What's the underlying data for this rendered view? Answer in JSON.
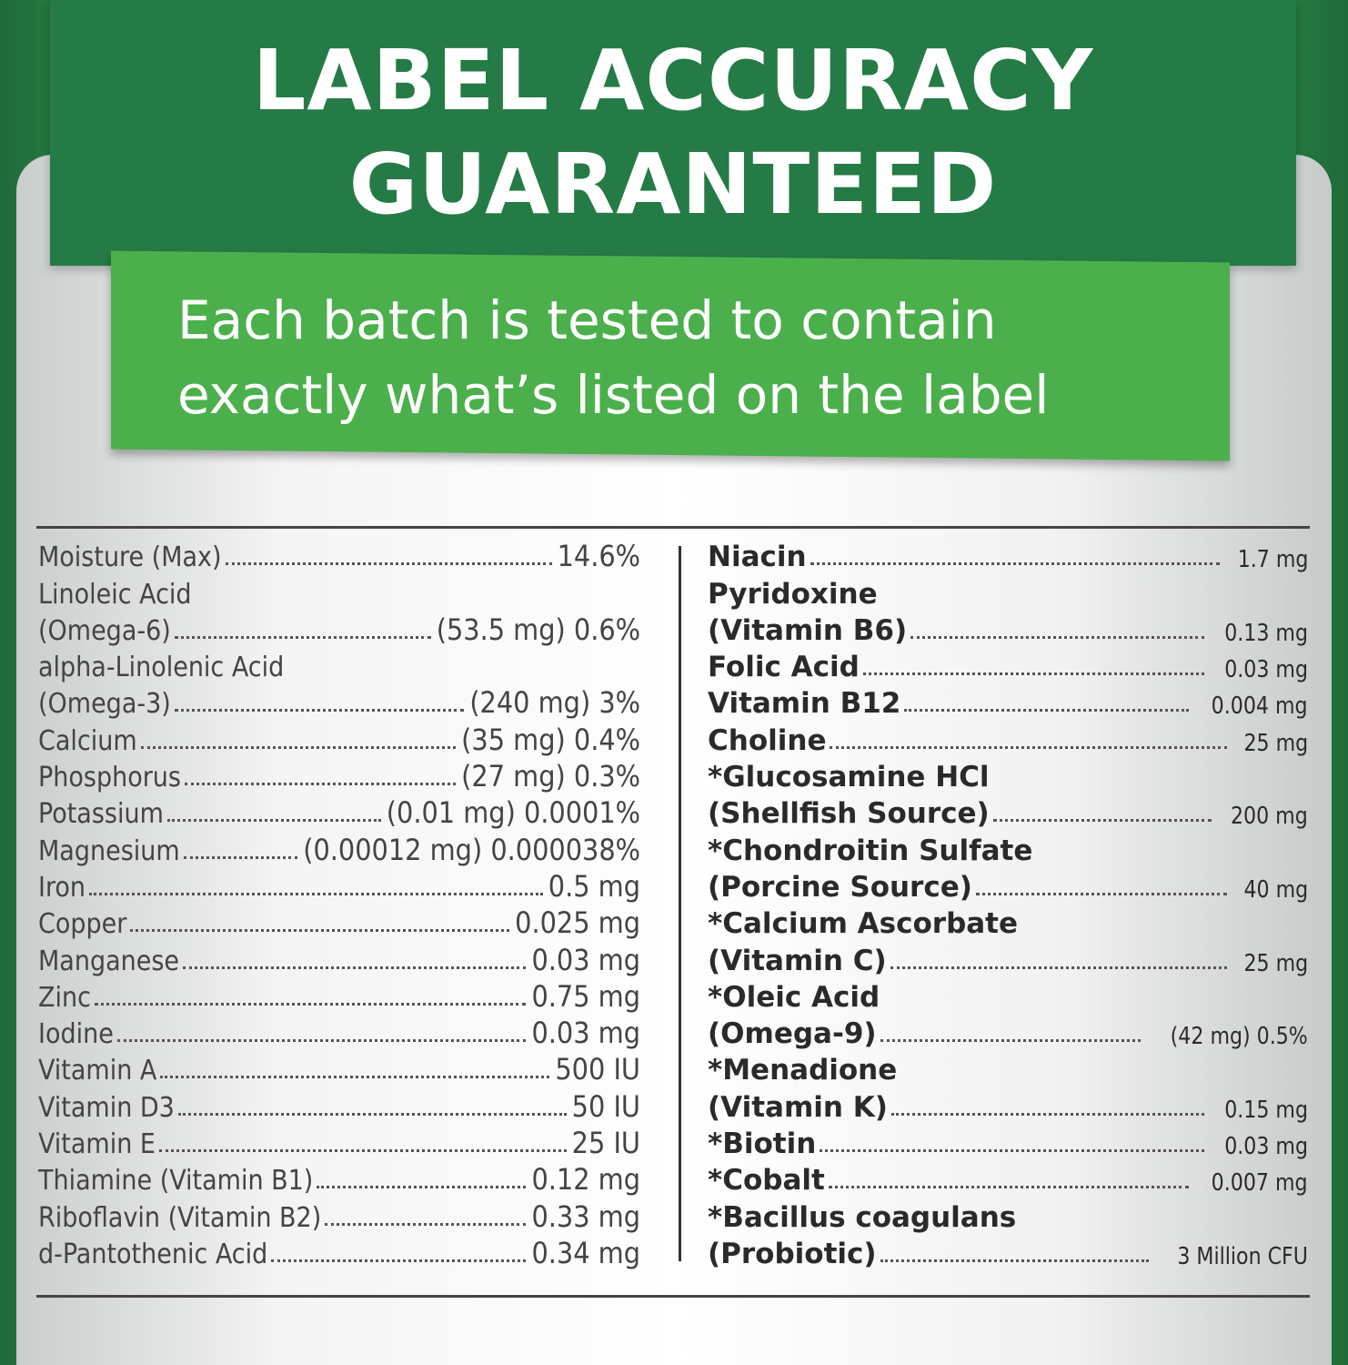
{
  "header": {
    "title_lines": [
      "LABEL ACCURACY",
      "GUARANTEED"
    ],
    "subtitle_lines": [
      "Each batch is tested to contain",
      "exactly what’s listed on the label"
    ]
  },
  "panel": {
    "left": [
      {
        "lines": [
          "Moisture (Max)"
        ],
        "value": "14.6%"
      },
      {
        "lines": [
          "Linoleic Acid",
          "(Omega-6)"
        ],
        "value": "(53.5 mg) 0.6%"
      },
      {
        "lines": [
          "alpha-Linolenic Acid",
          "(Omega-3)"
        ],
        "value": "(240 mg) 3%"
      },
      {
        "lines": [
          "Calcium"
        ],
        "value": "(35 mg) 0.4%"
      },
      {
        "lines": [
          "Phosphorus"
        ],
        "value": "(27 mg) 0.3%"
      },
      {
        "lines": [
          "Potassium"
        ],
        "value": "(0.01 mg) 0.0001%"
      },
      {
        "lines": [
          "Magnesium"
        ],
        "value": "(0.00012 mg) 0.000038%"
      },
      {
        "lines": [
          "Iron"
        ],
        "value": "0.5 mg"
      },
      {
        "lines": [
          "Copper"
        ],
        "value": "0.025 mg"
      },
      {
        "lines": [
          "Manganese"
        ],
        "value": "0.03 mg"
      },
      {
        "lines": [
          "Zinc"
        ],
        "value": "0.75 mg"
      },
      {
        "lines": [
          "Iodine"
        ],
        "value": "0.03 mg"
      },
      {
        "lines": [
          "Vitamin A"
        ],
        "value": "500 IU"
      },
      {
        "lines": [
          "Vitamin D3"
        ],
        "value": "50 IU"
      },
      {
        "lines": [
          "Vitamin E"
        ],
        "value": "25 IU"
      },
      {
        "lines": [
          "Thiamine (Vitamin B1)"
        ],
        "value": "0.12 mg"
      },
      {
        "lines": [
          "Riboflavin (Vitamin B2)"
        ],
        "value": "0.33 mg"
      },
      {
        "lines": [
          "d-Pantothenic Acid"
        ],
        "value": "0.34 mg"
      }
    ],
    "right": [
      {
        "lines": [
          "Niacin"
        ],
        "value": "1.7 mg"
      },
      {
        "lines": [
          "Pyridoxine",
          "(Vitamin B6)"
        ],
        "value": "0.13 mg"
      },
      {
        "lines": [
          "Folic Acid"
        ],
        "value": "0.03 mg"
      },
      {
        "lines": [
          "Vitamin B12"
        ],
        "value": "0.004 mg"
      },
      {
        "lines": [
          "Choline"
        ],
        "value": "25 mg"
      },
      {
        "lines": [
          "*Glucosamine HCl",
          "(Shellfish Source)"
        ],
        "value": "200 mg"
      },
      {
        "lines": [
          "*Chondroitin Sulfate",
          "(Porcine Source)"
        ],
        "value": "40 mg"
      },
      {
        "lines": [
          "*Calcium Ascorbate",
          "(Vitamin C)"
        ],
        "value": "25 mg"
      },
      {
        "lines": [
          "*Oleic Acid",
          "(Omega-9)"
        ],
        "value": "(42 mg) 0.5%"
      },
      {
        "lines": [
          "*Menadione",
          "(Vitamin K)"
        ],
        "value": "0.15 mg"
      },
      {
        "lines": [
          "*Biotin"
        ],
        "value": "0.03 mg"
      },
      {
        "lines": [
          "*Cobalt"
        ],
        "value": "0.007 mg"
      },
      {
        "lines": [
          "*Bacillus coagulans",
          "(Probiotic)"
        ],
        "value": "3 Million CFU"
      }
    ]
  }
}
